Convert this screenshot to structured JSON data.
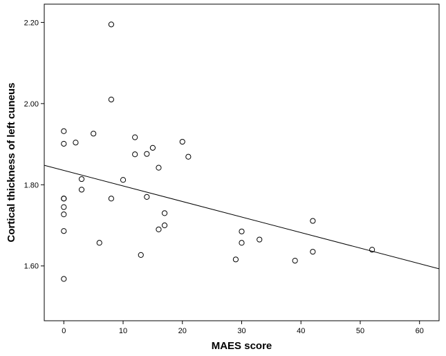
{
  "chart_data": {
    "type": "scatter",
    "title": "",
    "xlabel": "MAES score",
    "ylabel": "Cortical thickness of left cuneus",
    "xlim": [
      -3.3,
      63.3
    ],
    "ylim": [
      1.465,
      2.245
    ],
    "xticks": [
      0,
      10,
      20,
      30,
      40,
      50,
      60
    ],
    "xtick_labels": [
      "0",
      "10",
      "20",
      "30",
      "40",
      "50",
      "60"
    ],
    "yticks": [
      1.6,
      1.8,
      2.0,
      2.2
    ],
    "ytick_labels": [
      "1.60",
      "1.80",
      "2.00",
      "2.20"
    ],
    "grid": false,
    "legend": "none",
    "marker": "open-circle",
    "colors": {
      "marker": "#000000",
      "fit_line": "#000000",
      "background": "#ffffff"
    },
    "points": [
      {
        "x": 8,
        "y": 2.195
      },
      {
        "x": 8,
        "y": 2.01
      },
      {
        "x": 0,
        "y": 1.932
      },
      {
        "x": 0,
        "y": 1.901
      },
      {
        "x": 2,
        "y": 1.904
      },
      {
        "x": 5,
        "y": 1.926
      },
      {
        "x": 12,
        "y": 1.917
      },
      {
        "x": 12,
        "y": 1.875
      },
      {
        "x": 14,
        "y": 1.876
      },
      {
        "x": 15,
        "y": 1.891
      },
      {
        "x": 20,
        "y": 1.906
      },
      {
        "x": 21,
        "y": 1.869
      },
      {
        "x": 16,
        "y": 1.842
      },
      {
        "x": 3,
        "y": 1.814
      },
      {
        "x": 3,
        "y": 1.788
      },
      {
        "x": 10,
        "y": 1.812
      },
      {
        "x": 0,
        "y": 1.766
      },
      {
        "x": 0,
        "y": 1.766
      },
      {
        "x": 0,
        "y": 1.745
      },
      {
        "x": 0,
        "y": 1.727
      },
      {
        "x": 8,
        "y": 1.766
      },
      {
        "x": 14,
        "y": 1.77
      },
      {
        "x": 17,
        "y": 1.73
      },
      {
        "x": 17,
        "y": 1.7
      },
      {
        "x": 16,
        "y": 1.69
      },
      {
        "x": 0,
        "y": 1.686
      },
      {
        "x": 6,
        "y": 1.657
      },
      {
        "x": 13,
        "y": 1.627
      },
      {
        "x": 0,
        "y": 1.568
      },
      {
        "x": 30,
        "y": 1.685
      },
      {
        "x": 30,
        "y": 1.657
      },
      {
        "x": 33,
        "y": 1.665
      },
      {
        "x": 29,
        "y": 1.616
      },
      {
        "x": 39,
        "y": 1.613
      },
      {
        "x": 42,
        "y": 1.711
      },
      {
        "x": 42,
        "y": 1.635
      },
      {
        "x": 52,
        "y": 1.64
      }
    ],
    "fit_line": {
      "x": [
        -3.3,
        63.3
      ],
      "y": [
        1.848,
        1.593
      ]
    }
  }
}
